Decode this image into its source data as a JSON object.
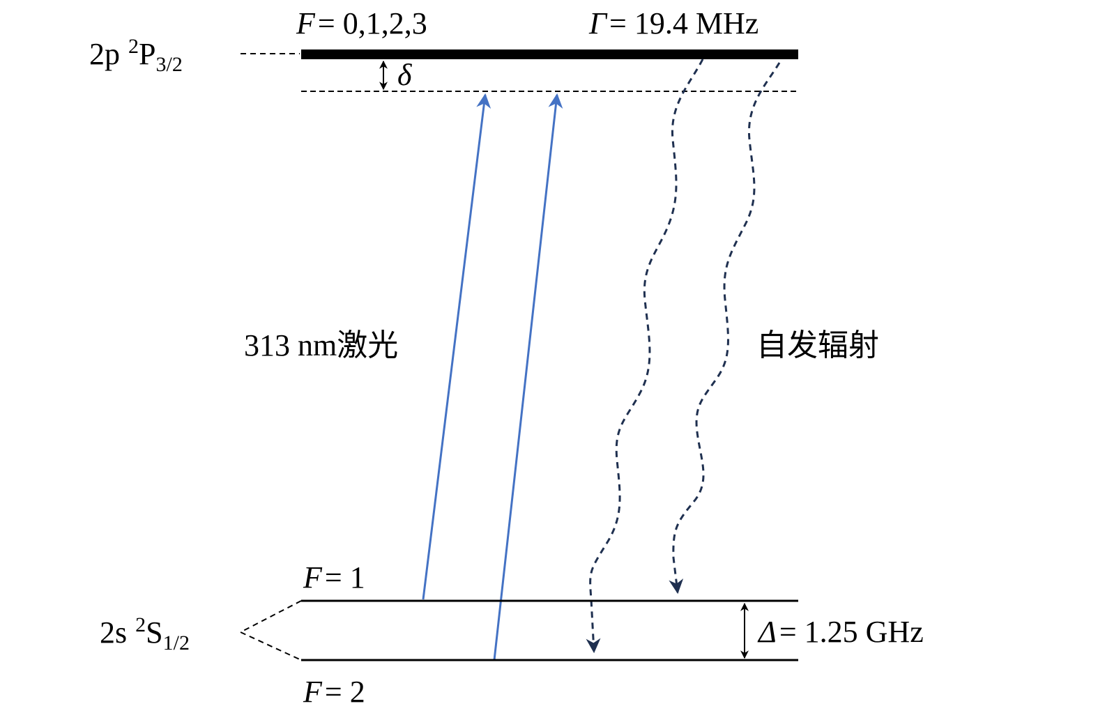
{
  "upper_level": {
    "label": {
      "config": "2p",
      "sup": "2",
      "term": "P",
      "sub": "3/2"
    },
    "hyperfine": {
      "symbol": "F",
      "value": "= 0,1,2,3"
    },
    "linewidth": {
      "symbol": "Γ",
      "value": "= 19.4 MHz"
    },
    "detuning": "δ"
  },
  "laser": "313 nm激光",
  "emission": "自发辐射",
  "lower_level": {
    "label": {
      "config": "2s",
      "sup": "2",
      "term": "S",
      "sub": "1/2"
    },
    "upper_sublevel": {
      "symbol": "F",
      "value": "= 1"
    },
    "lower_sublevel": {
      "symbol": "F",
      "value": "= 2"
    },
    "splitting": {
      "symbol": "Δ",
      "value": "= 1.25 GHz"
    }
  }
}
